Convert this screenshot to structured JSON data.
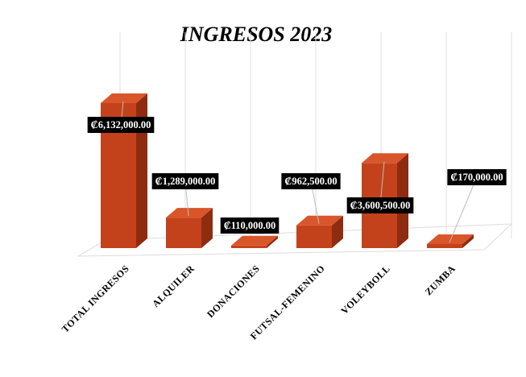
{
  "chart_data": {
    "type": "bar",
    "title": "INGRESOS 2023",
    "categories": [
      "TOTAL INGRESOS",
      "ALQUILER",
      "DONACIONES",
      "FUTSAL-FEMENINO",
      "VOLEYBOLL",
      "ZUMBA"
    ],
    "values": [
      6132000,
      1289000,
      110000,
      962500,
      3600500,
      170000
    ],
    "value_labels": [
      "₡6,132,000.00",
      "₡1,289,000.00",
      "₡110,000.00",
      "₡962,500.00",
      "₡3,600,500.00",
      "₡170,000.00"
    ],
    "color": "#c4421b"
  }
}
